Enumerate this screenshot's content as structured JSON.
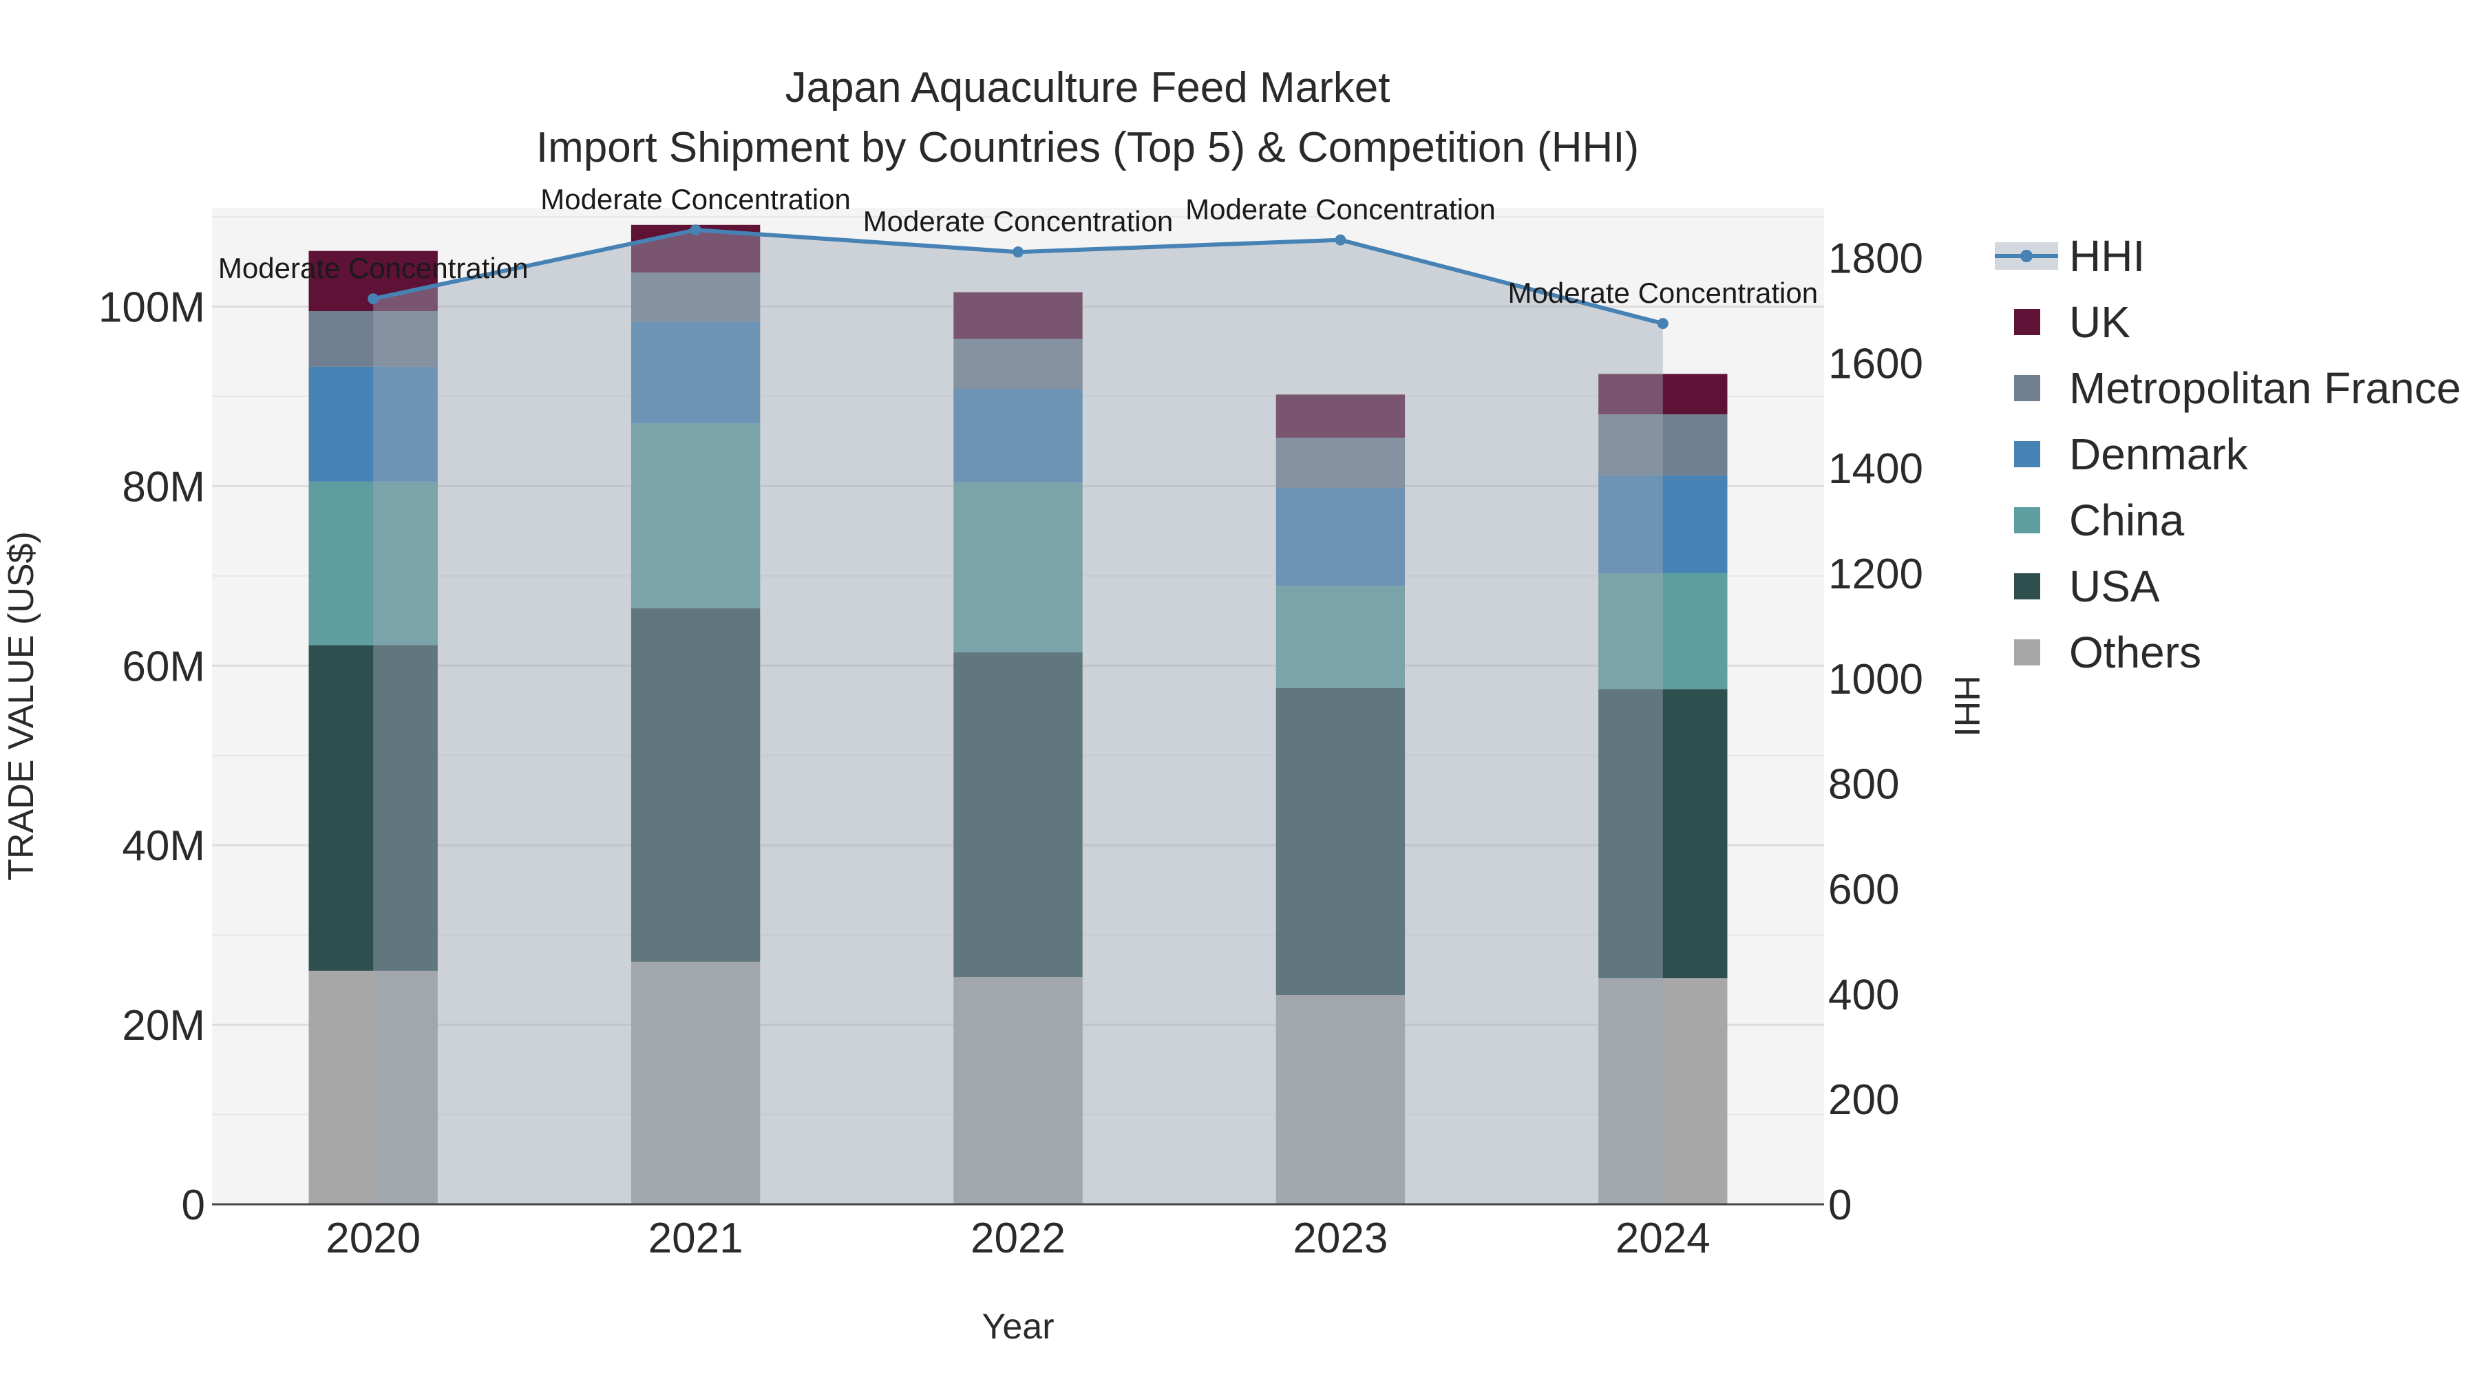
{
  "chart_data": {
    "type": "bar",
    "title_line1": "Japan Aquaculture Feed Market",
    "title_line2": "Import Shipment by Countries (Top 5) & Competition (HHI)",
    "xlabel": "Year",
    "ylabel": "TRADE VALUE (US$)",
    "y2label": "HHI",
    "categories": [
      "2020",
      "2021",
      "2022",
      "2023",
      "2024"
    ],
    "ylim": [
      0,
      111000000
    ],
    "y2lim": [
      0,
      1895
    ],
    "yticks": [
      {
        "value": 0,
        "label": "0"
      },
      {
        "value": 20000000,
        "label": "20M"
      },
      {
        "value": 40000000,
        "label": "40M"
      },
      {
        "value": 60000000,
        "label": "60M"
      },
      {
        "value": 80000000,
        "label": "80M"
      },
      {
        "value": 100000000,
        "label": "100M"
      }
    ],
    "y2ticks": [
      {
        "value": 0,
        "label": "0"
      },
      {
        "value": 200,
        "label": "200"
      },
      {
        "value": 400,
        "label": "400"
      },
      {
        "value": 600,
        "label": "600"
      },
      {
        "value": 800,
        "label": "800"
      },
      {
        "value": 1000,
        "label": "1000"
      },
      {
        "value": 1200,
        "label": "1200"
      },
      {
        "value": 1400,
        "label": "1400"
      },
      {
        "value": 1600,
        "label": "1600"
      },
      {
        "value": 1800,
        "label": "1800"
      }
    ],
    "series": [
      {
        "name": "Others",
        "color": "#a7a7a7",
        "values": [
          26000000,
          27000000,
          25300000,
          23300000,
          25200000
        ]
      },
      {
        "name": "USA",
        "color": "#2f4f4f",
        "values": [
          36300000,
          39400000,
          36200000,
          34200000,
          32200000
        ]
      },
      {
        "name": "China",
        "color": "#5f9ea0",
        "values": [
          18200000,
          20600000,
          18900000,
          11400000,
          12900000
        ]
      },
      {
        "name": "Denmark",
        "color": "#4682b4",
        "values": [
          12800000,
          11300000,
          10400000,
          10900000,
          10900000
        ]
      },
      {
        "name": "Metropolitan France",
        "color": "#708090",
        "values": [
          6200000,
          5500000,
          5600000,
          5600000,
          6800000
        ]
      },
      {
        "name": "UK",
        "color": "#5e1236",
        "values": [
          6700000,
          5300000,
          5200000,
          4800000,
          4500000
        ]
      }
    ],
    "hhi": {
      "name": "HHI",
      "color": "#4682b4",
      "values": [
        1722,
        1853,
        1811,
        1834,
        1675
      ],
      "labels": [
        "Moderate Concentration",
        "Moderate Concentration",
        "Moderate Concentration",
        "Moderate Concentration",
        "Moderate Concentration"
      ]
    },
    "legend": [
      "HHI",
      "UK",
      "Metropolitan France",
      "Denmark",
      "China",
      "USA",
      "Others"
    ],
    "legend_position": "right"
  }
}
